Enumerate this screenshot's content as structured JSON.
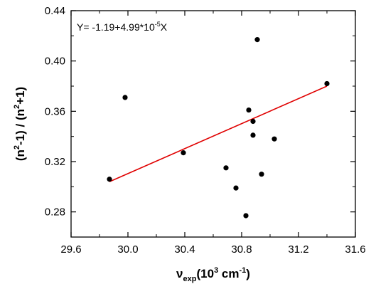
{
  "chart_data": {
    "type": "scatter",
    "x_ticks": [
      "29.6",
      "30.0",
      "30.4",
      "30.8",
      "31.2",
      "31.6"
    ],
    "y_ticks": [
      "0.28",
      "0.32",
      "0.36",
      "0.40",
      "0.44"
    ],
    "xlim": [
      29.6,
      31.6
    ],
    "ylim": [
      0.26,
      0.44
    ],
    "xlabel": {
      "main": "ν",
      "sub": "exp",
      "open": "(10",
      "sup": "3",
      "unit": " cm",
      "unit_sup": "-1",
      "close": ")"
    },
    "ylabel": {
      "p1": "(n",
      "s1": "2",
      "p2": "-1) / (n",
      "s2": "2",
      "p3": "+1)"
    },
    "equation": {
      "text": "Y= -1.19+4.99*10",
      "sup": "-5",
      "tail": "X"
    },
    "points": [
      {
        "x": 29.87,
        "y": 0.306
      },
      {
        "x": 29.98,
        "y": 0.371
      },
      {
        "x": 30.39,
        "y": 0.327
      },
      {
        "x": 30.69,
        "y": 0.315
      },
      {
        "x": 30.76,
        "y": 0.299
      },
      {
        "x": 30.83,
        "y": 0.277
      },
      {
        "x": 30.85,
        "y": 0.361
      },
      {
        "x": 30.88,
        "y": 0.352
      },
      {
        "x": 30.88,
        "y": 0.341
      },
      {
        "x": 30.91,
        "y": 0.417
      },
      {
        "x": 30.94,
        "y": 0.31
      },
      {
        "x": 31.03,
        "y": 0.338
      },
      {
        "x": 31.4,
        "y": 0.382
      }
    ],
    "fit_line": {
      "x": [
        29.87,
        31.4
      ],
      "y": [
        0.304,
        0.38
      ],
      "color": "#e00000"
    },
    "point_color": "#000000",
    "grid": false,
    "frame": "box"
  }
}
